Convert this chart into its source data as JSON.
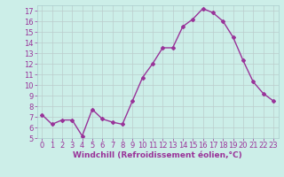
{
  "x": [
    0,
    1,
    2,
    3,
    4,
    5,
    6,
    7,
    8,
    9,
    10,
    11,
    12,
    13,
    14,
    15,
    16,
    17,
    18,
    19,
    20,
    21,
    22,
    23
  ],
  "y": [
    7.2,
    6.3,
    6.7,
    6.7,
    5.2,
    7.7,
    6.8,
    6.5,
    6.3,
    8.5,
    10.7,
    12.0,
    13.5,
    13.5,
    15.5,
    16.2,
    17.2,
    16.8,
    16.0,
    14.5,
    12.3,
    10.3,
    9.2,
    8.5
  ],
  "line_color": "#993399",
  "marker": "D",
  "markersize": 2.0,
  "linewidth": 1.0,
  "xlabel": "Windchill (Refroidissement éolien,°C)",
  "xlim": [
    -0.5,
    23.5
  ],
  "ylim": [
    5,
    17.5
  ],
  "yticks": [
    5,
    6,
    7,
    8,
    9,
    10,
    11,
    12,
    13,
    14,
    15,
    16,
    17
  ],
  "xticks": [
    0,
    1,
    2,
    3,
    4,
    5,
    6,
    7,
    8,
    9,
    10,
    11,
    12,
    13,
    14,
    15,
    16,
    17,
    18,
    19,
    20,
    21,
    22,
    23
  ],
  "bg_color": "#cceee8",
  "grid_color": "#aacccc",
  "line_grid_color": "#bbcccc",
  "tick_label_color": "#993399",
  "xlabel_color": "#993399",
  "xlabel_fontsize": 6.5,
  "tick_fontsize": 6.0
}
